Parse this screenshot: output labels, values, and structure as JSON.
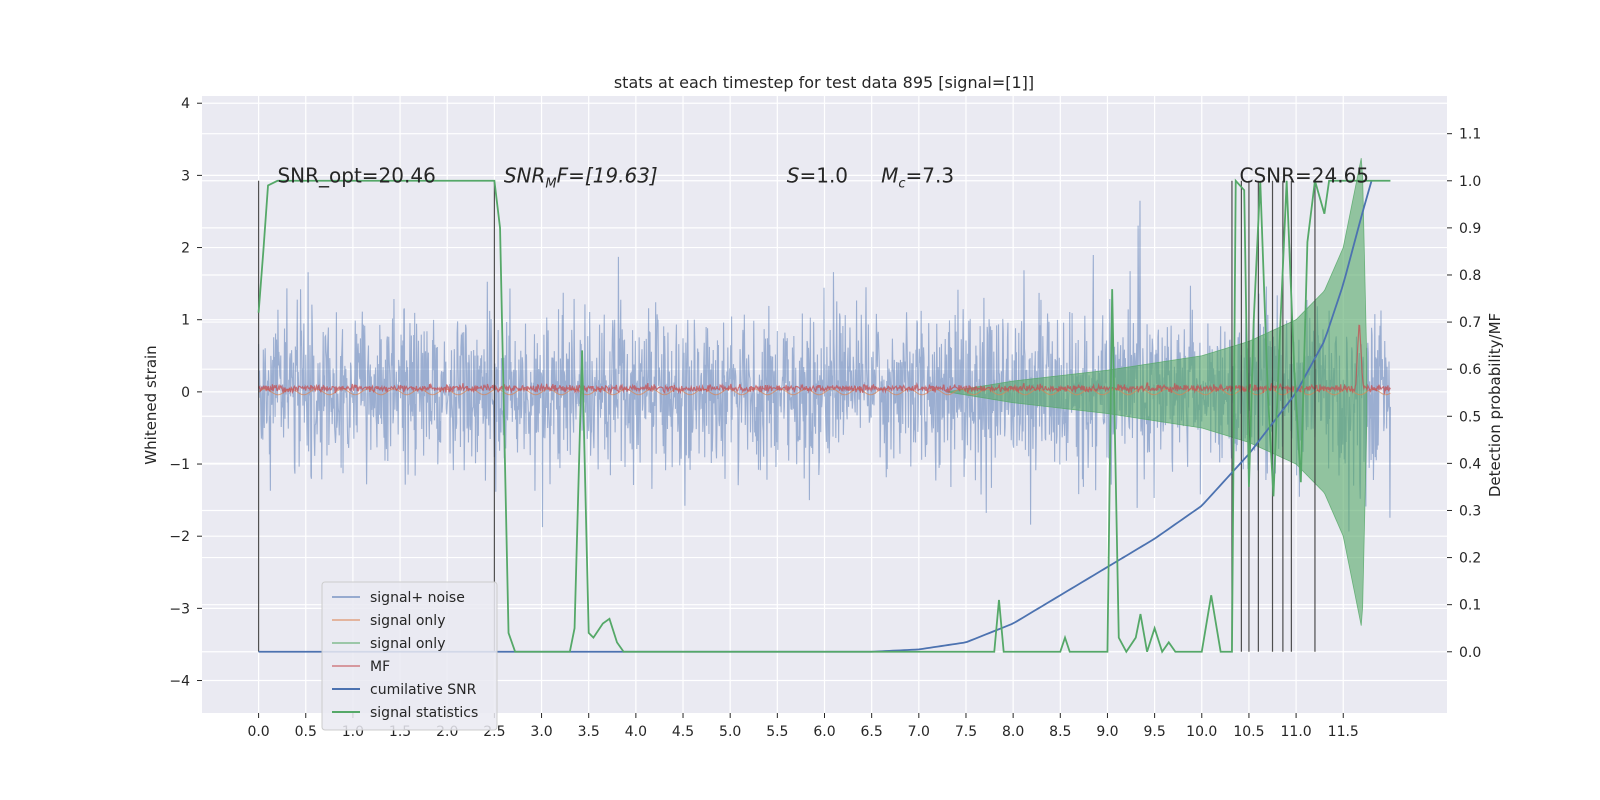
{
  "chart_data": {
    "type": "line",
    "title": "stats at each timestep for test data 895 [signal=[1]]",
    "ylabel": "Whitened strain",
    "y2label": "Detection probability/MF",
    "xlim": [
      -0.6,
      12.6
    ],
    "ylim": [
      -4.45,
      4.1
    ],
    "y2lim": [
      -0.13,
      1.18
    ],
    "x_ticks": [
      "0.0",
      "0.5",
      "1.0",
      "1.5",
      "2.0",
      "2.5",
      "3.0",
      "3.5",
      "4.0",
      "4.5",
      "5.0",
      "5.5",
      "6.0",
      "6.5",
      "7.0",
      "7.5",
      "8.0",
      "8.5",
      "9.0",
      "9.5",
      "10.0",
      "10.5",
      "11.0",
      "11.5"
    ],
    "y_ticks": [
      "4",
      "3",
      "2",
      "1",
      "0",
      "−1",
      "−2",
      "−3",
      "−4"
    ],
    "y2_ticks": [
      "1.1",
      "1.0",
      "0.9",
      "0.8",
      "0.7",
      "0.6",
      "0.5",
      "0.4",
      "0.3",
      "0.2",
      "0.1",
      "0.0"
    ],
    "grid": true,
    "legend_position": "lower-left",
    "annotations": [
      {
        "id": "snr-opt",
        "text": "SNR_opt=20.46",
        "x": 0.2,
        "y": 3.0
      },
      {
        "id": "snr-mf",
        "text": "SNR",
        "sub": "M",
        "suffix": "F=[19.63]",
        "x": 2.6,
        "y": 3.0
      },
      {
        "id": "spin",
        "text": "S",
        "suffix": "=1.0",
        "x": 5.6,
        "y": 3.0
      },
      {
        "id": "chirp-mass",
        "text": "M",
        "sub": "c",
        "suffix": "=7.3",
        "x": 6.6,
        "y": 3.0
      },
      {
        "id": "csnr",
        "text": "CSNR=24.65",
        "x": 10.4,
        "y": 3.0
      }
    ],
    "series": [
      {
        "name": "signal+ noise",
        "color": "#4c72b0",
        "axis": "left",
        "x_range": [
          0.0,
          12.0
        ],
        "amplitude": 2.0,
        "opacity": 0.5
      },
      {
        "name": "signal only",
        "color": "#dd8452",
        "axis": "left",
        "x_range": [
          0.0,
          12.0
        ],
        "amplitude": 0.08
      },
      {
        "name": "signal only",
        "color": "#55a868",
        "axis": "left",
        "envelope": [
          [
            7.3,
            0.0
          ],
          [
            8.0,
            0.15
          ],
          [
            9.0,
            0.3
          ],
          [
            10.0,
            0.5
          ],
          [
            10.5,
            0.7
          ],
          [
            11.0,
            1.0
          ],
          [
            11.3,
            1.4
          ],
          [
            11.5,
            2.0
          ],
          [
            11.7,
            3.3
          ],
          [
            11.75,
            0.4
          ]
        ],
        "opacity": 0.6
      },
      {
        "name": "MF",
        "color": "#c44e52",
        "axis": "left",
        "x_range": [
          0.0,
          12.0
        ],
        "amplitude": 0.1,
        "peak": {
          "x": 11.67,
          "y": 1.0
        }
      },
      {
        "name": "cumilative SNR",
        "color": "#4c72b0",
        "axis": "right",
        "points": [
          [
            0.0,
            0.0
          ],
          [
            6.5,
            0.0
          ],
          [
            7.0,
            0.005
          ],
          [
            7.5,
            0.02
          ],
          [
            8.0,
            0.06
          ],
          [
            8.5,
            0.12
          ],
          [
            9.0,
            0.18
          ],
          [
            9.5,
            0.24
          ],
          [
            10.0,
            0.31
          ],
          [
            10.5,
            0.42
          ],
          [
            11.0,
            0.55
          ],
          [
            11.3,
            0.66
          ],
          [
            11.5,
            0.78
          ],
          [
            11.7,
            0.93
          ],
          [
            11.8,
            1.0
          ]
        ]
      },
      {
        "name": "signal statistics",
        "color": "#55a868",
        "axis": "right",
        "points": [
          [
            0.0,
            0.72
          ],
          [
            0.05,
            0.85
          ],
          [
            0.1,
            0.99
          ],
          [
            0.2,
            1.0
          ],
          [
            2.5,
            1.0
          ],
          [
            2.56,
            0.9
          ],
          [
            2.65,
            0.04
          ],
          [
            2.72,
            0.0
          ],
          [
            3.3,
            0.0
          ],
          [
            3.35,
            0.05
          ],
          [
            3.43,
            0.64
          ],
          [
            3.5,
            0.04
          ],
          [
            3.55,
            0.03
          ],
          [
            3.65,
            0.06
          ],
          [
            3.72,
            0.07
          ],
          [
            3.8,
            0.02
          ],
          [
            3.87,
            0.0
          ],
          [
            7.8,
            0.0
          ],
          [
            7.85,
            0.11
          ],
          [
            7.9,
            0.0
          ],
          [
            8.5,
            0.0
          ],
          [
            8.55,
            0.03
          ],
          [
            8.6,
            0.0
          ],
          [
            9.0,
            0.0
          ],
          [
            9.05,
            0.77
          ],
          [
            9.12,
            0.03
          ],
          [
            9.2,
            0.0
          ],
          [
            9.3,
            0.03
          ],
          [
            9.35,
            0.08
          ],
          [
            9.42,
            0.0
          ],
          [
            9.5,
            0.05
          ],
          [
            9.58,
            0.0
          ],
          [
            9.65,
            0.02
          ],
          [
            9.72,
            0.0
          ],
          [
            10.0,
            0.0
          ],
          [
            10.1,
            0.12
          ],
          [
            10.2,
            0.0
          ],
          [
            10.32,
            0.0
          ],
          [
            10.36,
            1.0
          ],
          [
            10.45,
            0.98
          ],
          [
            10.5,
            0.35
          ],
          [
            10.55,
            0.7
          ],
          [
            10.62,
            1.0
          ],
          [
            10.7,
            0.55
          ],
          [
            10.76,
            0.33
          ],
          [
            10.83,
            0.68
          ],
          [
            10.9,
            1.0
          ],
          [
            10.98,
            0.6
          ],
          [
            11.05,
            0.36
          ],
          [
            11.12,
            0.87
          ],
          [
            11.2,
            1.0
          ],
          [
            11.3,
            0.93
          ],
          [
            11.35,
            1.0
          ],
          [
            12.0,
            1.0
          ]
        ]
      }
    ],
    "vlines": [
      0.0,
      2.5,
      10.32,
      10.42,
      10.5,
      10.6,
      10.75,
      10.86,
      10.95,
      11.2
    ]
  }
}
